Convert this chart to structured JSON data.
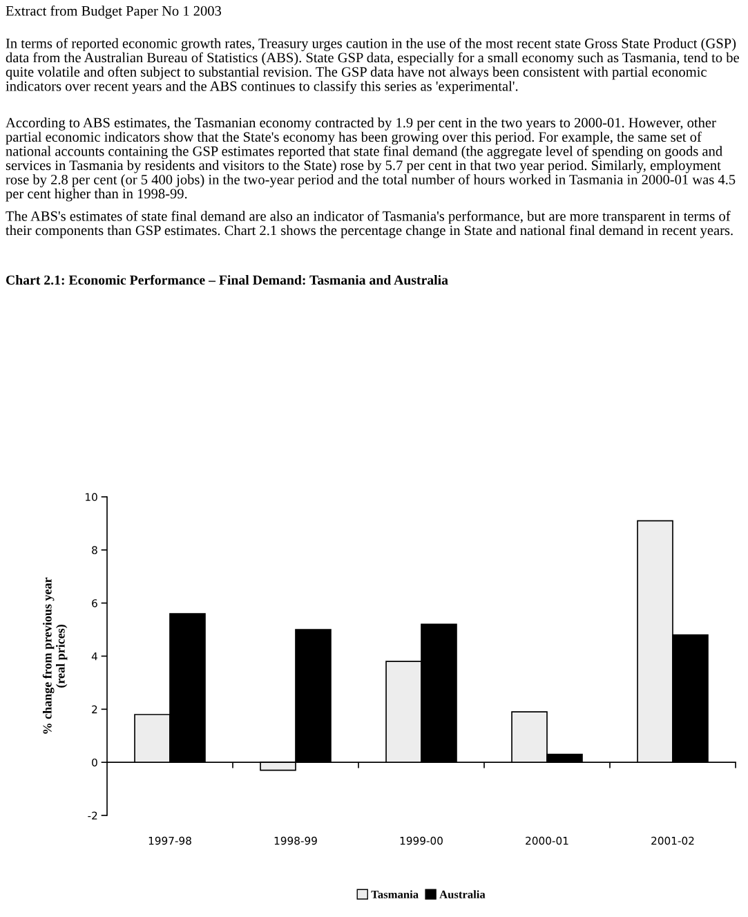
{
  "chart_data": {
    "type": "bar",
    "title": "Chart 2.1: Economic Performance – Final Demand: Tasmania and Australia",
    "annotations": [
      "Extract from Budget Paper No 1 2003",
      "In terms of reported economic growth rates, Treasury urges caution in the use of the most recent state Gross State Product (GSP) data from the Australian Bureau of Statistics (ABS). State GSP data, especially for a small economy such as Tasmania, tend to be quite volatile and often subject to substantial revision. The GSP data have not always been consistent with partial economic indicators over recent years and the ABS continues to classify this series as 'experimental'.",
      "According to ABS estimates, the Tasmanian economy contracted by 1.9 per cent in the two years to 2000-01. However, other partial economic indicators show that the State's economy has been growing over this period. For example, the same set of national accounts containing the GSP estimates reported that state final demand (the aggregate level of spending on goods and services in Tasmania by residents and visitors to the State) rose by 5.7 per cent in that two year period. Similarly, employment rose by 2.8 per cent (or 5 400 jobs) in the two-year period and the total number of hours worked in Tasmania in 2000-01 was 4.5 per cent higher than in 1998-99.",
      "The ABS's estimates of state final demand are also an indicator of Tasmania's performance, but are more transparent in terms of their components than GSP estimates. Chart 2.1 shows the percentage change in State and national final demand in recent years."
    ],
    "ylabel": "% change from previous year\n(real prices)",
    "categories": [
      "1997-98",
      "1998-99",
      "1999-00",
      "2000-01",
      "2001-02"
    ],
    "series": [
      {
        "name": "Tasmania",
        "color": "#ededed",
        "values": [
          1.8,
          -0.3,
          3.8,
          1.9,
          9.1
        ]
      },
      {
        "name": "Australia",
        "color": "#000000",
        "values": [
          5.6,
          5.0,
          5.2,
          0.3,
          4.8
        ]
      }
    ],
    "ylim": [
      -2,
      10
    ],
    "yticks": [
      -2,
      0,
      2,
      4,
      6,
      8,
      10
    ],
    "legend": "bottom"
  }
}
